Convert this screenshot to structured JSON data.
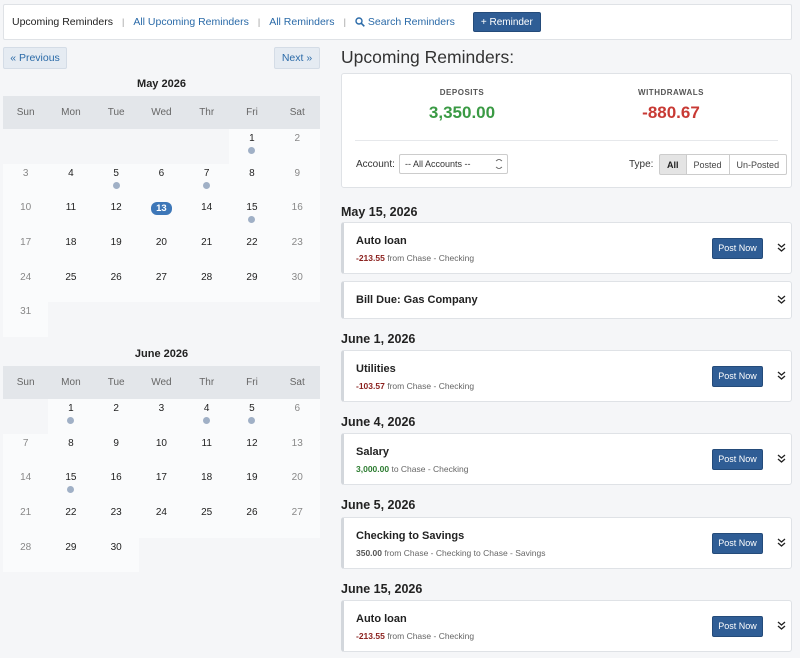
{
  "nav": {
    "items": [
      "Upcoming Reminders",
      "All Upcoming Reminders",
      "All Reminders"
    ],
    "search_label": "Search Reminders",
    "add_label": "+ Reminder",
    "separator": "|"
  },
  "pager": {
    "prev_label": "« Previous",
    "next_label": "Next »"
  },
  "weekdays": [
    "Sun",
    "Mon",
    "Tue",
    "Wed",
    "Thr",
    "Fri",
    "Sat"
  ],
  "calendars": [
    {
      "title": "May 2026",
      "start_offset": 5,
      "days_in_month": 31,
      "today": 13,
      "dots": [
        1,
        5,
        7,
        15
      ]
    },
    {
      "title": "June 2026",
      "start_offset": 1,
      "days_in_month": 30,
      "today": null,
      "dots": [
        1,
        4,
        5,
        15
      ]
    }
  ],
  "main": {
    "title": "Upcoming Reminders:",
    "deposits_label": "DEPOSITS",
    "deposits_value": "3,350.00",
    "withdrawals_label": "WITHDRAWALS",
    "withdrawals_value": "-880.67",
    "account_label": "Account:",
    "account_value": "-- All Accounts --",
    "type_label": "Type:",
    "type_options": [
      "All",
      "Posted",
      "Un-Posted"
    ],
    "type_selected": "All"
  },
  "groups": [
    {
      "date": "May 15, 2026",
      "items": [
        {
          "title": "Auto loan",
          "amount": "-213.55",
          "kind": "neg",
          "detail": " from Chase - Checking",
          "post": true
        },
        {
          "title": "Bill Due: Gas Company",
          "amount": "",
          "kind": "",
          "detail": "",
          "post": false
        }
      ]
    },
    {
      "date": "June 1, 2026",
      "items": [
        {
          "title": "Utilities",
          "amount": "-103.57",
          "kind": "neg",
          "detail": " from Chase - Checking",
          "post": true
        }
      ]
    },
    {
      "date": "June 4, 2026",
      "items": [
        {
          "title": "Salary",
          "amount": "3,000.00",
          "kind": "pos",
          "detail": " to Chase - Checking",
          "post": true
        }
      ]
    },
    {
      "date": "June 5, 2026",
      "items": [
        {
          "title": "Checking to Savings",
          "amount": "350.00",
          "kind": "neu",
          "detail": " from Chase - Checking to Chase - Savings",
          "post": true
        }
      ]
    },
    {
      "date": "June 15, 2026",
      "items": [
        {
          "title": "Auto loan",
          "amount": "-213.55",
          "kind": "neg",
          "detail": " from Chase - Checking",
          "post": true
        }
      ]
    }
  ],
  "post_label": "Post Now",
  "colors": {
    "accent": "#2f5d95",
    "deposit": "#3a9a44",
    "withdrawal": "#c83a34",
    "dot": "#a0b0c6"
  }
}
